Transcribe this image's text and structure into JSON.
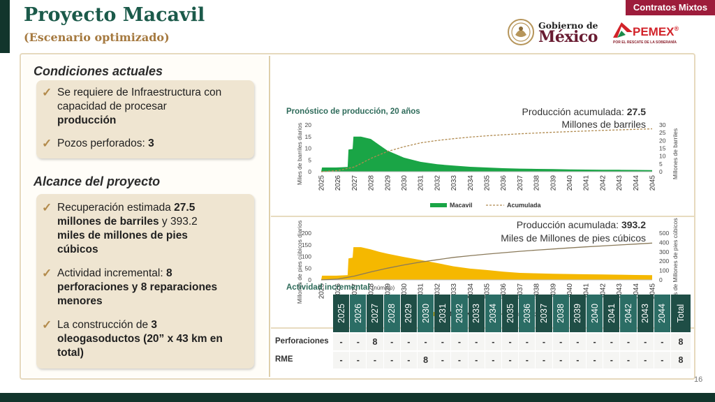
{
  "header": {
    "title": "Proyecto Macavil",
    "subtitle": "(Escenario optimizado)",
    "badge": "Contratos Mixtos",
    "gobierno_line1": "Gobierno de",
    "gobierno_line2": "México",
    "pemex_word": "PEMEX",
    "pemex_registered": "®",
    "pemex_tagline": "POR EL RESCATE DE LA SOBERANÍA"
  },
  "left": {
    "conditions_title": "Condiciones actuales",
    "conditions": [
      {
        "lines": [
          [
            "Se requiere de Infraestructura con",
            false
          ],
          [
            "capacidad de procesar",
            false
          ],
          [
            "producción",
            true
          ]
        ]
      },
      {
        "text": " Pozos perforados: ",
        "bold": "3"
      }
    ],
    "scope_title": "Alcance del proyecto",
    "scope": [
      {
        "lines": [
          [
            "Recuperación estimada ",
            false,
            "27.5"
          ],
          [
            "millones de barriles",
            true,
            " y  393.2"
          ],
          [
            "miles de millones de pies",
            true
          ],
          [
            "cúbicos",
            true
          ]
        ]
      },
      {
        "lines": [
          [
            "Actividad incremental: ",
            false,
            "8"
          ],
          [
            "perforaciones y 8 reparaciones",
            true
          ],
          [
            "menores",
            true
          ]
        ]
      },
      {
        "lines": [
          [
            "La construcción de ",
            false,
            "3"
          ],
          [
            "oleogasoductos (20” x 43 km en",
            true
          ],
          [
            "total)",
            true
          ]
        ]
      }
    ]
  },
  "chart_data": [
    {
      "type": "area",
      "title": "Pronóstico de producción, 20 años",
      "annotation_prefix": "Producción acumulada: ",
      "annotation_value": "27.5",
      "annotation_unit": "Millones de barriles",
      "ylabel": "Miles de barriles diarios",
      "y2label": "Millones de barriles",
      "ylim": [
        0,
        20
      ],
      "y2lim": [
        0,
        30
      ],
      "yticks": [
        0,
        5,
        10,
        15,
        20
      ],
      "y2ticks": [
        0,
        5,
        10,
        15,
        20,
        25,
        30
      ],
      "x_labels": [
        "2025",
        "2026",
        "2027",
        "2028",
        "2029",
        "2030",
        "2031",
        "2032",
        "2033",
        "2034",
        "2035",
        "2036",
        "2037",
        "2038",
        "2039",
        "2040",
        "2041",
        "2042",
        "2043",
        "2044",
        "2045"
      ],
      "color": "#1aa546",
      "line_color": "#b08a4f",
      "series": [
        {
          "name": "Macavil",
          "kind": "area",
          "points": [
            [
              0,
              0
            ],
            [
              0.05,
              1.8
            ],
            [
              0.9,
              1.8
            ],
            [
              1.6,
              2.0
            ],
            [
              1.65,
              9.5
            ],
            [
              1.9,
              9.7
            ],
            [
              1.95,
              15.0
            ],
            [
              2.4,
              15.0
            ],
            [
              3.0,
              14.0
            ],
            [
              3.5,
              11.5
            ],
            [
              4.0,
              9.0
            ],
            [
              5.0,
              6.0
            ],
            [
              6.0,
              4.2
            ],
            [
              7.0,
              3.2
            ],
            [
              8.0,
              2.6
            ],
            [
              9.0,
              2.1
            ],
            [
              10.0,
              1.8
            ],
            [
              11.0,
              1.5
            ],
            [
              12.0,
              1.3
            ],
            [
              13.0,
              1.2
            ],
            [
              14.0,
              1.1
            ],
            [
              15.0,
              1.0
            ],
            [
              16.0,
              0.9
            ],
            [
              17.0,
              0.85
            ],
            [
              18.0,
              0.8
            ],
            [
              19.0,
              0.75
            ],
            [
              20.0,
              0.7
            ],
            [
              20.0,
              0
            ]
          ]
        },
        {
          "name": "Acumulada",
          "kind": "line",
          "points": [
            [
              0,
              0
            ],
            [
              1.0,
              0.7
            ],
            [
              2.0,
              3.0
            ],
            [
              3.0,
              8.5
            ],
            [
              4.0,
              13.0
            ],
            [
              5.0,
              16.0
            ],
            [
              6.0,
              18.5
            ],
            [
              7.0,
              20.0
            ],
            [
              8.0,
              21.2
            ],
            [
              9.0,
              22.2
            ],
            [
              10.0,
              23.0
            ],
            [
              11.0,
              23.7
            ],
            [
              12.0,
              24.3
            ],
            [
              13.0,
              24.8
            ],
            [
              14.0,
              25.3
            ],
            [
              15.0,
              25.7
            ],
            [
              16.0,
              26.1
            ],
            [
              17.0,
              26.5
            ],
            [
              18.0,
              26.8
            ],
            [
              19.0,
              27.2
            ],
            [
              20.0,
              27.5
            ]
          ]
        }
      ]
    },
    {
      "type": "area",
      "title": "",
      "annotation_prefix": "Producción acumulada: ",
      "annotation_value": "393.2",
      "annotation_unit": "Miles de Millones de pies cúbicos",
      "ylabel": "Millones de pies cúbicos diarios",
      "y2label": "Miles de Millones de pies cúbicos",
      "ylim": [
        0,
        200
      ],
      "y2lim": [
        0,
        500
      ],
      "yticks": [
        0,
        50,
        100,
        150,
        200
      ],
      "y2ticks": [
        0,
        100,
        200,
        300,
        400,
        500
      ],
      "x_labels": [
        "2025",
        "2026",
        "2027",
        "2028",
        "2029",
        "2030",
        "2031",
        "2032",
        "2033",
        "2034",
        "2035",
        "2036",
        "2037",
        "2038",
        "2039",
        "2040",
        "2041",
        "2042",
        "2043",
        "2044",
        "2045"
      ],
      "color": "#f5b800",
      "line_color": "#8a7a5a",
      "series": [
        {
          "name": "Macavil",
          "kind": "area",
          "points": [
            [
              0,
              0
            ],
            [
              0.05,
              18
            ],
            [
              0.9,
              18
            ],
            [
              1.6,
              20
            ],
            [
              1.65,
              92
            ],
            [
              1.9,
              95
            ],
            [
              1.95,
              140
            ],
            [
              2.4,
              140
            ],
            [
              3.0,
              130
            ],
            [
              3.5,
              120
            ],
            [
              4.0,
              112
            ],
            [
              5.0,
              98
            ],
            [
              6.0,
              85
            ],
            [
              7.0,
              72
            ],
            [
              8.0,
              58
            ],
            [
              9.0,
              48
            ],
            [
              10.0,
              42
            ],
            [
              11.0,
              35
            ],
            [
              12.0,
              30
            ],
            [
              13.0,
              28
            ],
            [
              14.0,
              26
            ],
            [
              15.0,
              25
            ],
            [
              16.0,
              24
            ],
            [
              17.0,
              23
            ],
            [
              18.0,
              22
            ],
            [
              19.0,
              21
            ],
            [
              20.0,
              20
            ],
            [
              20.0,
              0
            ]
          ]
        },
        {
          "name": "Acumulada",
          "kind": "line",
          "points": [
            [
              0,
              0
            ],
            [
              1.0,
              8
            ],
            [
              2.0,
              40
            ],
            [
              3.0,
              85
            ],
            [
              4.0,
              125
            ],
            [
              5.0,
              160
            ],
            [
              6.0,
              190
            ],
            [
              7.0,
              215
            ],
            [
              8.0,
              240
            ],
            [
              9.0,
              258
            ],
            [
              10.0,
              275
            ],
            [
              11.0,
              290
            ],
            [
              12.0,
              305
            ],
            [
              13.0,
              318
            ],
            [
              14.0,
              330
            ],
            [
              15.0,
              342
            ],
            [
              16.0,
              353
            ],
            [
              17.0,
              363
            ],
            [
              18.0,
              373
            ],
            [
              19.0,
              383
            ],
            [
              20.0,
              393.2
            ]
          ]
        }
      ]
    }
  ],
  "table": {
    "title": "Actividad incremental",
    "title_note": "(número)",
    "years": [
      "2025",
      "2026",
      "2027",
      "2028",
      "2029",
      "2030",
      "2031",
      "2032",
      "2033",
      "2034",
      "2035",
      "2036",
      "2037",
      "2038",
      "2039",
      "2040",
      "2041",
      "2042",
      "2043",
      "2044"
    ],
    "total_label": "Total",
    "rows": [
      {
        "label": "Perforaciones",
        "values": [
          "-",
          "-",
          "8",
          "-",
          "-",
          "-",
          "-",
          "-",
          "-",
          "-",
          "-",
          "-",
          "-",
          "-",
          "-",
          "-",
          "-",
          "-",
          "-",
          "-"
        ],
        "total": "8"
      },
      {
        "label": "RME",
        "values": [
          "-",
          "-",
          "-",
          "-",
          "-",
          "8",
          "-",
          "-",
          "-",
          "-",
          "-",
          "-",
          "-",
          "-",
          "-",
          "-",
          "-",
          "-",
          "-",
          "-"
        ],
        "total": "8"
      }
    ]
  },
  "page_number": "16"
}
